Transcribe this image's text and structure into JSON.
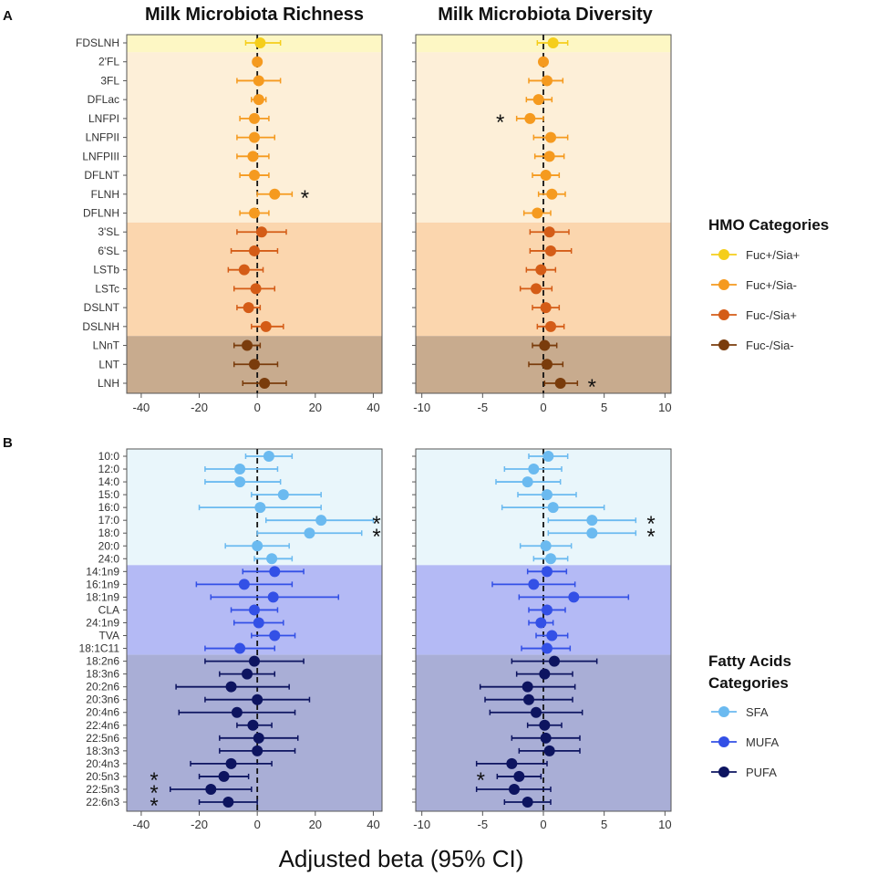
{
  "chart_data": [
    {
      "panel": "A",
      "type": "forest",
      "title_left": "Milk Microbiota Richness",
      "title_right": "Milk Microbiota Diversity",
      "labels": [
        "FDSLNH",
        "2'FL",
        "3FL",
        "DFLac",
        "LNFPI",
        "LNFPII",
        "LNFPIII",
        "DFLNT",
        "FLNH",
        "DFLNH",
        "3'SL",
        "6'SL",
        "LSTb",
        "LSTc",
        "DSLNT",
        "DSLNH",
        "LNnT",
        "LNT",
        "LNH"
      ],
      "category": [
        "Fuc+/Sia+",
        "Fuc+/Sia-",
        "Fuc+/Sia-",
        "Fuc+/Sia-",
        "Fuc+/Sia-",
        "Fuc+/Sia-",
        "Fuc+/Sia-",
        "Fuc+/Sia-",
        "Fuc+/Sia-",
        "Fuc+/Sia-",
        "Fuc-/Sia+",
        "Fuc-/Sia+",
        "Fuc-/Sia+",
        "Fuc-/Sia+",
        "Fuc-/Sia+",
        "Fuc-/Sia+",
        "Fuc-/Sia-",
        "Fuc-/Sia-",
        "Fuc-/Sia-"
      ],
      "richness": {
        "xlim": [
          -45,
          43
        ],
        "ticks": [
          -40,
          -20,
          0,
          20,
          40
        ],
        "tick_labels": [
          "-40",
          "-20",
          "0",
          "20",
          "40"
        ],
        "est": [
          1,
          0,
          0.5,
          0.5,
          -1,
          -1,
          -1.5,
          -1,
          6,
          -1,
          1.5,
          -1,
          -4.5,
          -0.5,
          -3,
          3,
          -3.5,
          -1,
          2.5
        ],
        "lo": [
          -4,
          -1,
          -7,
          -2,
          -6,
          -7,
          -7,
          -6,
          0,
          -6,
          -7,
          -9,
          -10,
          -8,
          -7,
          -2,
          -8,
          -8,
          -5
        ],
        "hi": [
          8,
          1,
          8,
          3,
          4,
          6,
          4,
          4,
          12,
          4,
          10,
          7,
          2,
          6,
          1,
          9,
          1,
          7,
          10
        ],
        "significant": [
          8
        ]
      },
      "diversity": {
        "xlim": [
          -10.5,
          10.5
        ],
        "ticks": [
          -10,
          -5,
          0,
          5,
          10
        ],
        "tick_labels": [
          "-10",
          "-5",
          "0",
          "5",
          "10"
        ],
        "est": [
          0.8,
          0,
          0.3,
          -0.4,
          -1.1,
          0.6,
          0.5,
          0.2,
          0.7,
          -0.5,
          0.5,
          0.6,
          -0.2,
          -0.6,
          0.2,
          0.6,
          0.1,
          0.3,
          1.4
        ],
        "lo": [
          -0.5,
          -0.3,
          -1.2,
          -1.4,
          -2.2,
          -0.8,
          -0.7,
          -0.9,
          -0.4,
          -1.6,
          -1.1,
          -1.1,
          -1.4,
          -1.9,
          -0.9,
          -0.5,
          -0.9,
          -1.2,
          0.1
        ],
        "hi": [
          2.0,
          0.3,
          1.6,
          0.7,
          0.0,
          2.0,
          1.7,
          1.3,
          1.8,
          0.6,
          2.1,
          2.3,
          1.0,
          0.7,
          1.3,
          1.7,
          1.1,
          1.6,
          2.8
        ],
        "significant": [
          4,
          18
        ]
      }
    },
    {
      "panel": "B",
      "type": "forest",
      "labels": [
        "10:0",
        "12:0",
        "14:0",
        "15:0",
        "16:0",
        "17:0",
        "18:0",
        "20:0",
        "24:0",
        "14:1n9",
        "16:1n9",
        "18:1n9",
        "CLA",
        "24:1n9",
        "TVA",
        "18:1C11",
        "18:2n6",
        "18:3n6",
        "20:2n6",
        "20:3n6",
        "20:4n6",
        "22:4n6",
        "22:5n6",
        "18:3n3",
        "20:4n3",
        "20:5n3",
        "22:5n3",
        "22:6n3"
      ],
      "category": [
        "SFA",
        "SFA",
        "SFA",
        "SFA",
        "SFA",
        "SFA",
        "SFA",
        "SFA",
        "SFA",
        "MUFA",
        "MUFA",
        "MUFA",
        "MUFA",
        "MUFA",
        "MUFA",
        "MUFA",
        "PUFA",
        "PUFA",
        "PUFA",
        "PUFA",
        "PUFA",
        "PUFA",
        "PUFA",
        "PUFA",
        "PUFA",
        "PUFA",
        "PUFA",
        "PUFA"
      ],
      "richness": {
        "xlim": [
          -45,
          43
        ],
        "ticks": [
          -40,
          -20,
          0,
          20,
          40
        ],
        "tick_labels": [
          "-40",
          "-20",
          "0",
          "20",
          "40"
        ],
        "est": [
          4,
          -6,
          -6,
          9,
          1,
          22,
          18,
          0,
          5,
          6,
          -4.5,
          5.5,
          -1,
          0.5,
          6,
          -6,
          -1,
          -3.5,
          -9,
          0,
          -7,
          -1.5,
          0.5,
          0,
          -9,
          -11.5,
          -16,
          -10
        ],
        "lo": [
          -4,
          -18,
          -18,
          -2,
          -20,
          3,
          0,
          -11,
          -1,
          -5,
          -21,
          -16,
          -9,
          -8,
          -2,
          -18,
          -18,
          -13,
          -28,
          -18,
          -27,
          -7,
          -13,
          -13,
          -23,
          -20,
          -30,
          -20
        ],
        "hi": [
          12,
          7,
          8,
          22,
          22,
          40,
          36,
          11,
          12,
          16,
          12,
          28,
          7,
          9,
          13,
          6,
          16,
          6,
          11,
          18,
          13,
          5,
          14,
          13,
          5,
          -3,
          -2,
          0
        ],
        "significant": [
          5,
          6,
          25,
          26,
          27
        ]
      },
      "diversity": {
        "xlim": [
          -10.5,
          10.5
        ],
        "ticks": [
          -10,
          -5,
          0,
          5,
          10
        ],
        "tick_labels": [
          "-10",
          "-5",
          "0",
          "5",
          "10"
        ],
        "est": [
          0.4,
          -0.8,
          -1.3,
          0.3,
          0.8,
          4.0,
          4.0,
          0.2,
          0.6,
          0.3,
          -0.8,
          2.5,
          0.3,
          -0.2,
          0.7,
          0.3,
          0.9,
          0.1,
          -1.3,
          -1.2,
          -0.6,
          0.1,
          0.2,
          0.5,
          -2.6,
          -2.0,
          -2.4,
          -1.3
        ],
        "lo": [
          -1.2,
          -3.2,
          -3.9,
          -2.1,
          -3.4,
          0.4,
          0.4,
          -1.9,
          -0.8,
          -1.3,
          -4.2,
          -2.0,
          -1.2,
          -1.2,
          -0.6,
          -1.8,
          -2.6,
          -2.2,
          -5.2,
          -4.8,
          -4.4,
          -1.3,
          -2.6,
          -2.0,
          -5.5,
          -3.8,
          -5.5,
          -3.2
        ],
        "hi": [
          2.0,
          1.5,
          1.4,
          2.7,
          5.0,
          7.6,
          7.6,
          2.3,
          2.0,
          1.9,
          2.6,
          7.0,
          1.8,
          0.8,
          2.0,
          2.2,
          4.4,
          2.4,
          2.6,
          2.4,
          3.2,
          1.5,
          3.0,
          3.0,
          0.3,
          -0.2,
          0.6,
          0.6
        ],
        "significant": [
          5,
          6,
          25
        ]
      }
    }
  ],
  "legends": {
    "hmo": {
      "title": "HMO Categories",
      "items": [
        {
          "label": "Fuc+/Sia+",
          "color": "#F5CE1B"
        },
        {
          "label": "Fuc+/Sia-",
          "color": "#F59A1F"
        },
        {
          "label": "Fuc-/Sia+",
          "color": "#D45C17"
        },
        {
          "label": "Fuc-/Sia-",
          "color": "#7A3C0C"
        }
      ]
    },
    "fa": {
      "title_line1": "Fatty Acids",
      "title_line2": "Categories",
      "items": [
        {
          "label": "SFA",
          "color": "#6BBAF0"
        },
        {
          "label": "MUFA",
          "color": "#3350E6"
        },
        {
          "label": "PUFA",
          "color": "#0D1460"
        }
      ]
    }
  },
  "backgrounds": {
    "Fuc+/Sia+": "#FDF7C4",
    "Fuc+/Sia-": "#FDEFD8",
    "Fuc-/Sia+": "#FBD6AE",
    "Fuc-/Sia-": "#C8AB8E",
    "SFA": "#E9F6FB",
    "MUFA": "#B4BAF5",
    "PUFA": "#A9AED6"
  },
  "star_symbol": "*",
  "xaxis_label": "Adjusted beta (95% CI)"
}
